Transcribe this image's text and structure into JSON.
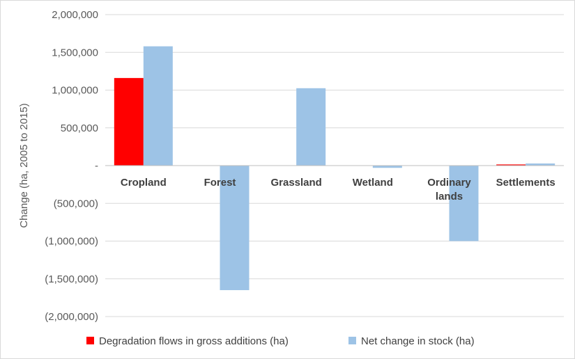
{
  "chart_data": {
    "type": "bar",
    "title": "",
    "xlabel": "",
    "ylabel": "Change (ha, 2005 to 2015)",
    "categories": [
      "Cropland",
      "Forest",
      "Grassland",
      "Wetland",
      "Ordinary lands",
      "Settlements"
    ],
    "category_lines": [
      [
        "Cropland"
      ],
      [
        "Forest"
      ],
      [
        "Grassland"
      ],
      [
        "Wetland"
      ],
      [
        "Ordinary",
        "lands"
      ],
      [
        "Settlements"
      ]
    ],
    "series": [
      {
        "name": "Degradation flows in gross additions (ha)",
        "color": "#ff0000",
        "values": [
          1160000,
          0,
          0,
          0,
          0,
          15000
        ]
      },
      {
        "name": "Net change in stock (ha)",
        "color": "#9dc3e6",
        "values": [
          1580000,
          -1650000,
          1025000,
          -30000,
          -1000000,
          28000
        ]
      }
    ],
    "ylim": [
      -2000000,
      2000000
    ],
    "yticks": [
      2000000,
      1500000,
      1000000,
      500000,
      0,
      -500000,
      -1000000,
      -1500000,
      -2000000
    ],
    "ytick_labels": [
      "2,000,000",
      "1,500,000",
      "1,000,000",
      "500,000",
      "-",
      "(500,000)",
      "(1,000,000)",
      "(1,500,000)",
      "(2,000,000)"
    ],
    "grid": true,
    "legend": "bottom",
    "grid_color": "#d9d9d9",
    "axis_color": "#bfbfbf"
  }
}
